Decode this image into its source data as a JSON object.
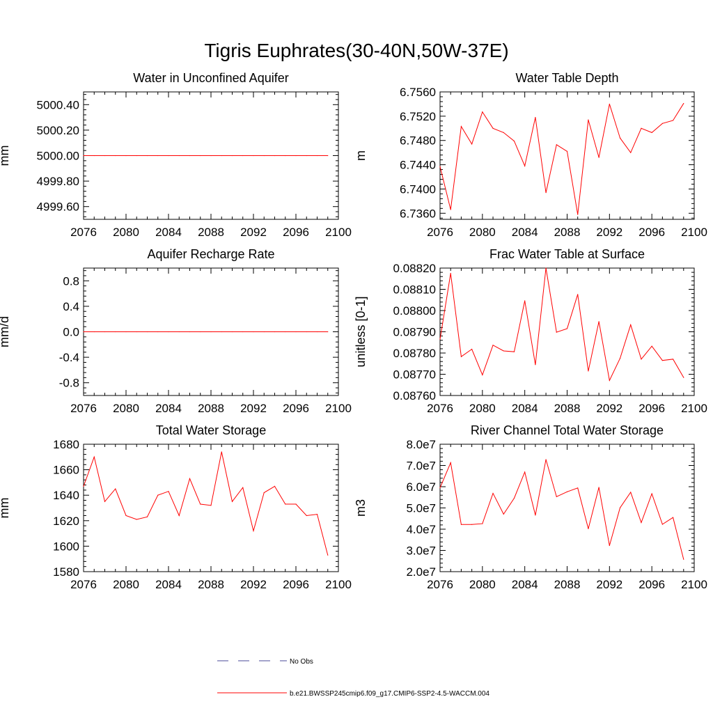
{
  "title": "Tigris Euphrates(30-40N,50W-37E)",
  "line_color": "#ff0000",
  "obs_color": "#4a4a9a",
  "legend": {
    "obs_label": "No Obs",
    "model_label": "b.e21.BWSSP245cmip6.f09_g17.CMIP6-SSP2-4.5-WACCM.004"
  },
  "chart_data": [
    {
      "type": "line",
      "title": "Water in Unconfined Aquifer",
      "ylabel": "mm",
      "xlim": [
        2076,
        2100
      ],
      "xticks": [
        2076,
        2080,
        2084,
        2088,
        2092,
        2096,
        2100
      ],
      "xtick_labels": [
        "2076",
        "2080",
        "2084",
        "2088",
        "2092",
        "2096",
        "2100"
      ],
      "ylim": [
        4999.5,
        5000.5
      ],
      "yticks": [
        4999.6,
        4999.8,
        5000.0,
        5000.2,
        5000.4
      ],
      "ytick_labels": [
        "4999.60",
        "4999.80",
        "5000.00",
        "5000.20",
        "5000.40"
      ],
      "x": [
        2076,
        2077,
        2078,
        2079,
        2080,
        2081,
        2082,
        2083,
        2084,
        2085,
        2086,
        2087,
        2088,
        2089,
        2090,
        2091,
        2092,
        2093,
        2094,
        2095,
        2096,
        2097,
        2098,
        2099
      ],
      "y": [
        5000,
        5000,
        5000,
        5000,
        5000,
        5000,
        5000,
        5000,
        5000,
        5000,
        5000,
        5000,
        5000,
        5000,
        5000,
        5000,
        5000,
        5000,
        5000,
        5000,
        5000,
        5000,
        5000,
        5000
      ]
    },
    {
      "type": "line",
      "title": "Water Table Depth",
      "ylabel": "m",
      "xlim": [
        2076,
        2100
      ],
      "xticks": [
        2076,
        2080,
        2084,
        2088,
        2092,
        2096,
        2100
      ],
      "xtick_labels": [
        "2076",
        "2080",
        "2084",
        "2088",
        "2092",
        "2096",
        "2100"
      ],
      "ylim": [
        6.735,
        6.756
      ],
      "yticks": [
        6.736,
        6.74,
        6.744,
        6.748,
        6.752,
        6.756
      ],
      "ytick_labels": [
        "6.7360",
        "6.7400",
        "6.7440",
        "6.7480",
        "6.7520",
        "6.7560"
      ],
      "x": [
        2076,
        2077,
        2078,
        2079,
        2080,
        2081,
        2082,
        2083,
        2084,
        2085,
        2086,
        2087,
        2088,
        2089,
        2090,
        2091,
        2092,
        2093,
        2094,
        2095,
        2096,
        2097,
        2098,
        2099
      ],
      "y": [
        6.7437,
        6.7366,
        6.7503,
        6.7474,
        6.7527,
        6.75,
        6.7493,
        6.7479,
        6.7438,
        6.7518,
        6.7394,
        6.7473,
        6.7462,
        6.7358,
        6.7514,
        6.7452,
        6.754,
        6.7484,
        6.746,
        6.75,
        6.7493,
        6.7508,
        6.7513,
        6.7541
      ]
    },
    {
      "type": "line",
      "title": "Aquifer Recharge Rate",
      "ylabel": "mm/d",
      "xlim": [
        2076,
        2100
      ],
      "xticks": [
        2076,
        2080,
        2084,
        2088,
        2092,
        2096,
        2100
      ],
      "xtick_labels": [
        "2076",
        "2080",
        "2084",
        "2088",
        "2092",
        "2096",
        "2100"
      ],
      "ylim": [
        -1.0,
        1.0
      ],
      "yticks": [
        -0.8,
        -0.4,
        0.0,
        0.4,
        0.8
      ],
      "ytick_labels": [
        "-0.8",
        "-0.4",
        "0.0",
        "0.4",
        "0.8"
      ],
      "x": [
        2076,
        2077,
        2078,
        2079,
        2080,
        2081,
        2082,
        2083,
        2084,
        2085,
        2086,
        2087,
        2088,
        2089,
        2090,
        2091,
        2092,
        2093,
        2094,
        2095,
        2096,
        2097,
        2098,
        2099
      ],
      "y": [
        0,
        0,
        0,
        0,
        0,
        0,
        0,
        0,
        0,
        0,
        0,
        0,
        0,
        0,
        0,
        0,
        0,
        0,
        0,
        0,
        0,
        0,
        0,
        0
      ]
    },
    {
      "type": "line",
      "title": "Frac Water Table at Surface",
      "ylabel": "unitless [0-1]",
      "xlim": [
        2076,
        2100
      ],
      "xticks": [
        2076,
        2080,
        2084,
        2088,
        2092,
        2096,
        2100
      ],
      "xtick_labels": [
        "2076",
        "2080",
        "2084",
        "2088",
        "2092",
        "2096",
        "2100"
      ],
      "ylim": [
        0.0876,
        0.0882
      ],
      "yticks": [
        0.0876,
        0.0877,
        0.0878,
        0.0879,
        0.088,
        0.0881,
        0.0882
      ],
      "ytick_labels": [
        "0.08760",
        "0.08770",
        "0.08780",
        "0.08790",
        "0.08800",
        "0.08810",
        "0.08820"
      ],
      "x": [
        2076,
        2077,
        2078,
        2079,
        2080,
        2081,
        2082,
        2083,
        2084,
        2085,
        2086,
        2087,
        2088,
        2089,
        2090,
        2091,
        2092,
        2093,
        2094,
        2095,
        2096,
        2097,
        2098,
        2099
      ],
      "y": [
        0.087865,
        0.088175,
        0.087783,
        0.087818,
        0.087697,
        0.087837,
        0.08781,
        0.087806,
        0.088046,
        0.087745,
        0.0882,
        0.087898,
        0.087915,
        0.088076,
        0.087715,
        0.087948,
        0.087671,
        0.087775,
        0.087933,
        0.087771,
        0.087832,
        0.087765,
        0.087771,
        0.087685
      ]
    },
    {
      "type": "line",
      "title": "Total Water Storage",
      "ylabel": "mm",
      "xlim": [
        2076,
        2100
      ],
      "xticks": [
        2076,
        2080,
        2084,
        2088,
        2092,
        2096,
        2100
      ],
      "xtick_labels": [
        "2076",
        "2080",
        "2084",
        "2088",
        "2092",
        "2096",
        "2100"
      ],
      "ylim": [
        1580,
        1680
      ],
      "yticks": [
        1580,
        1600,
        1620,
        1640,
        1660,
        1680
      ],
      "ytick_labels": [
        "1580",
        "1600",
        "1620",
        "1640",
        "1660",
        "1680"
      ],
      "x": [
        2076,
        2077,
        2078,
        2079,
        2080,
        2081,
        2082,
        2083,
        2084,
        2085,
        2086,
        2087,
        2088,
        2089,
        2090,
        2091,
        2092,
        2093,
        2094,
        2095,
        2096,
        2097,
        2098,
        2099
      ],
      "y": [
        1647,
        1670,
        1635,
        1645,
        1624,
        1621,
        1623,
        1640,
        1643,
        1624,
        1653,
        1633,
        1632,
        1674,
        1635,
        1646,
        1612,
        1642,
        1647,
        1633,
        1633,
        1624,
        1625,
        1593
      ]
    },
    {
      "type": "line",
      "title": "River Channel Total Water Storage",
      "ylabel": "m3",
      "xlim": [
        2076,
        2100
      ],
      "xticks": [
        2076,
        2080,
        2084,
        2088,
        2092,
        2096,
        2100
      ],
      "xtick_labels": [
        "2076",
        "2080",
        "2084",
        "2088",
        "2092",
        "2096",
        "2100"
      ],
      "ylim": [
        20000000,
        80000000
      ],
      "yticks": [
        20000000,
        30000000,
        40000000,
        50000000,
        60000000,
        70000000,
        80000000
      ],
      "ytick_labels": [
        "2.0e7",
        "3.0e7",
        "4.0e7",
        "5.0e7",
        "6.0e7",
        "7.0e7",
        "8.0e7"
      ],
      "x": [
        2076,
        2077,
        2078,
        2079,
        2080,
        2081,
        2082,
        2083,
        2084,
        2085,
        2086,
        2087,
        2088,
        2089,
        2090,
        2091,
        2092,
        2093,
        2094,
        2095,
        2096,
        2097,
        2098,
        2099
      ],
      "y": [
        59500000,
        71300000,
        42200000,
        42200000,
        42600000,
        56900000,
        47100000,
        54600000,
        66900000,
        46600000,
        72800000,
        55300000,
        57600000,
        59400000,
        40200000,
        59700000,
        32300000,
        50100000,
        57400000,
        43100000,
        56700000,
        42300000,
        45500000,
        25800000
      ]
    }
  ]
}
